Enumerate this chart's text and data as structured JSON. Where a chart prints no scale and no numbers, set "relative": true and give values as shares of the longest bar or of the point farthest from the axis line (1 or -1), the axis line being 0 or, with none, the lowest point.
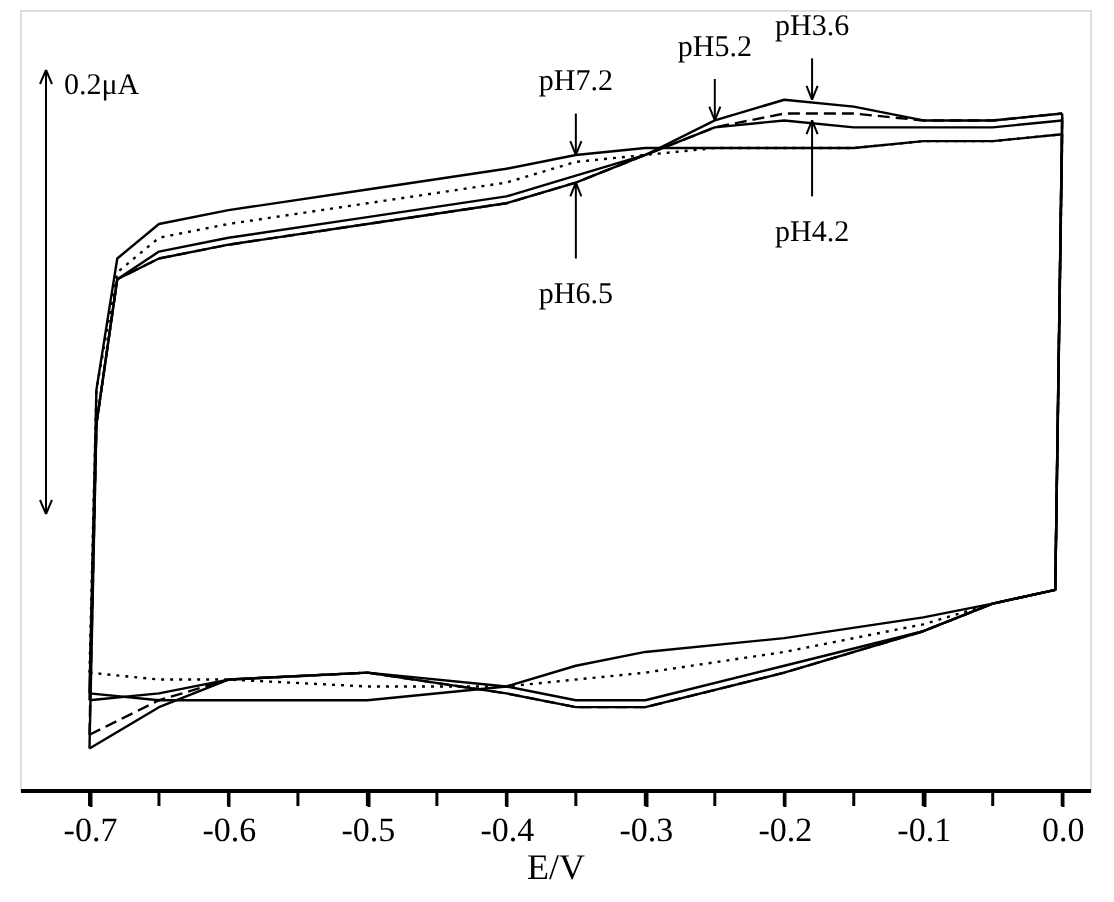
{
  "chart_data": {
    "type": "line",
    "relative": true,
    "xlabel": "E/V",
    "xlim": [
      -0.75,
      0.02
    ],
    "xticks": [
      -0.7,
      {
        "value": -0.65,
        "label": null
      },
      -0.6,
      {
        "value": -0.55,
        "label": null
      },
      -0.5,
      {
        "value": -0.45,
        "label": null
      },
      -0.4,
      {
        "value": -0.35,
        "label": null
      },
      -0.3,
      {
        "value": -0.25,
        "label": null
      },
      -0.2,
      {
        "value": -0.15,
        "label": null
      },
      -0.1,
      {
        "value": -0.05,
        "label": null
      },
      {
        "value": 0,
        "label": "0.0"
      }
    ],
    "x": [
      -0.7,
      -0.695,
      -0.68,
      -0.65,
      -0.6,
      -0.5,
      -0.4,
      -0.35,
      -0.3,
      -0.25,
      -0.2,
      -0.15,
      -0.1,
      -0.05,
      0
    ],
    "series": [
      {
        "color": "#000000",
        "line_style": "solid",
        "values": [
          0.14,
          0.58,
          0.77,
          0.82,
          0.84,
          0.87,
          0.9,
          0.92,
          0.93,
          0.93,
          0.93,
          0.93,
          0.94,
          0.94,
          0.95
        ]
      },
      {
        "color": "#000000",
        "line_style": "solid",
        "x": [
          -0.7,
          -0.65,
          -0.6,
          -0.5,
          -0.4,
          -0.35,
          -0.3,
          -0.2,
          -0.1,
          -0.05,
          -0.005,
          0
        ],
        "values": [
          0.14,
          0.13,
          0.13,
          0.13,
          0.15,
          0.18,
          0.2,
          0.22,
          0.25,
          0.27,
          0.29,
          0.95
        ]
      },
      {
        "color": "#000000",
        "line_style": "dotted",
        "values": [
          0.17,
          0.58,
          0.75,
          0.8,
          0.82,
          0.85,
          0.88,
          0.91,
          0.92,
          0.93,
          0.93,
          0.93,
          0.94,
          0.94,
          0.95
        ]
      },
      {
        "color": "#000000",
        "line_style": "dotted",
        "x": [
          -0.7,
          -0.65,
          -0.6,
          -0.5,
          -0.4,
          -0.35,
          -0.3,
          -0.2,
          -0.1,
          -0.05,
          -0.005,
          0
        ],
        "values": [
          0.17,
          0.16,
          0.16,
          0.15,
          0.15,
          0.16,
          0.17,
          0.2,
          0.24,
          0.27,
          0.29,
          0.95
        ]
      },
      {
        "color": "#000000",
        "line_style": "solid",
        "values": [
          0.13,
          0.53,
          0.74,
          0.78,
          0.8,
          0.83,
          0.86,
          0.89,
          0.92,
          0.96,
          0.97,
          0.96,
          0.96,
          0.96,
          0.97
        ]
      },
      {
        "color": "#000000",
        "line_style": "solid",
        "x": [
          -0.7,
          -0.65,
          -0.6,
          -0.5,
          -0.4,
          -0.35,
          -0.3,
          -0.2,
          -0.1,
          -0.05,
          -0.005,
          0
        ],
        "values": [
          0.13,
          0.14,
          0.16,
          0.17,
          0.15,
          0.13,
          0.13,
          0.18,
          0.23,
          0.27,
          0.29,
          0.97
        ]
      },
      {
        "color": "#000000",
        "line_style": "dashed",
        "values": [
          0.08,
          0.53,
          0.74,
          0.77,
          0.79,
          0.82,
          0.85,
          0.88,
          0.92,
          0.96,
          0.98,
          0.98,
          0.97,
          0.97,
          0.98
        ]
      },
      {
        "color": "#000000",
        "line_style": "dashed",
        "x": [
          -0.7,
          -0.65,
          -0.6,
          -0.5,
          -0.4,
          -0.35,
          -0.3,
          -0.2,
          -0.1,
          -0.05,
          -0.005,
          0
        ],
        "values": [
          0.08,
          0.13,
          0.16,
          0.17,
          0.14,
          0.12,
          0.12,
          0.17,
          0.23,
          0.27,
          0.29,
          0.98
        ]
      },
      {
        "color": "#000000",
        "line_style": "solid",
        "values": [
          0.06,
          0.53,
          0.74,
          0.77,
          0.79,
          0.82,
          0.85,
          0.88,
          0.92,
          0.97,
          1.0,
          0.99,
          0.97,
          0.97,
          0.98
        ]
      },
      {
        "color": "#000000",
        "line_style": "solid",
        "x": [
          -0.7,
          -0.65,
          -0.6,
          -0.5,
          -0.4,
          -0.35,
          -0.3,
          -0.2,
          -0.1,
          -0.05,
          -0.005,
          0
        ],
        "values": [
          0.06,
          0.12,
          0.16,
          0.17,
          0.14,
          0.12,
          0.12,
          0.17,
          0.23,
          0.27,
          0.29,
          0.98
        ]
      }
    ],
    "annotations": [
      "0.2μA",
      {
        "text": "pH7.2",
        "x": -0.35,
        "y": 0.92
      },
      {
        "text": "pH5.2",
        "x": -0.25,
        "y": 0.97
      },
      {
        "text": "pH3.6",
        "x": -0.18,
        "y": 1.0
      },
      {
        "text": "pH6.5",
        "x": -0.35,
        "y": 0.88
      },
      {
        "text": "pH4.2",
        "x": -0.18,
        "y": 0.97
      }
    ]
  }
}
